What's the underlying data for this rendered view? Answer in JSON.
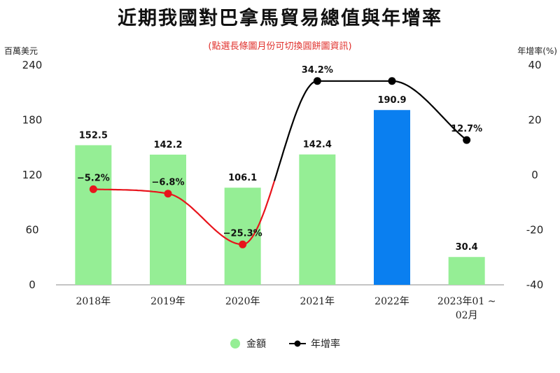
{
  "title": "近期我國對巴拿馬貿易總值與年增率",
  "subtitle": "(點選長條圖月份可切換圓餅圖資訊)",
  "colors": {
    "bar": "#95ee95",
    "bar_highlight": "#0a7ff0",
    "line_positive": "#000000",
    "line_negative": "#e8141c",
    "point_negative": "#e8141c",
    "point_positive": "#000000"
  },
  "legend": [
    {
      "label": "金額",
      "icon": "green-circle"
    },
    {
      "label": "年增率",
      "icon": "line-with-dot"
    }
  ],
  "chart_data": {
    "type": "bar",
    "categories": [
      "2018年",
      "2019年",
      "2020年",
      "2021年",
      "2022年",
      "2023年01 ~ 02月"
    ],
    "category_lines": [
      [
        "2018年"
      ],
      [
        "2019年"
      ],
      [
        "2020年"
      ],
      [
        "2021年"
      ],
      [
        "2022年"
      ],
      [
        "2023年01 ~",
        "02月"
      ]
    ],
    "series": [
      {
        "name": "金額",
        "type": "bar",
        "axis": "left",
        "values": [
          152.5,
          142.2,
          106.1,
          142.4,
          190.9,
          30.4
        ],
        "labels": [
          "152.5",
          "142.2",
          "106.1",
          "142.4",
          "190.9",
          "30.4"
        ],
        "highlight_index": 4
      },
      {
        "name": "年增率",
        "type": "line",
        "axis": "right",
        "values": [
          -5.2,
          -6.8,
          -25.3,
          34.2,
          34.2,
          12.7
        ],
        "labels": [
          "−5.2%",
          "−6.8%",
          "−25.3%",
          "34.2%",
          "",
          "12.7%"
        ]
      }
    ],
    "y_left": {
      "unit": "百萬美元",
      "ylim": [
        0,
        240
      ],
      "ticks": [
        "0",
        "60",
        "120",
        "180",
        "240"
      ]
    },
    "y_right": {
      "unit": "年增率(%)",
      "ylim": [
        -40,
        40
      ],
      "ticks": [
        "-40",
        "-20",
        "0",
        "20",
        "40"
      ]
    },
    "grid": false,
    "legend_position": "bottom"
  }
}
